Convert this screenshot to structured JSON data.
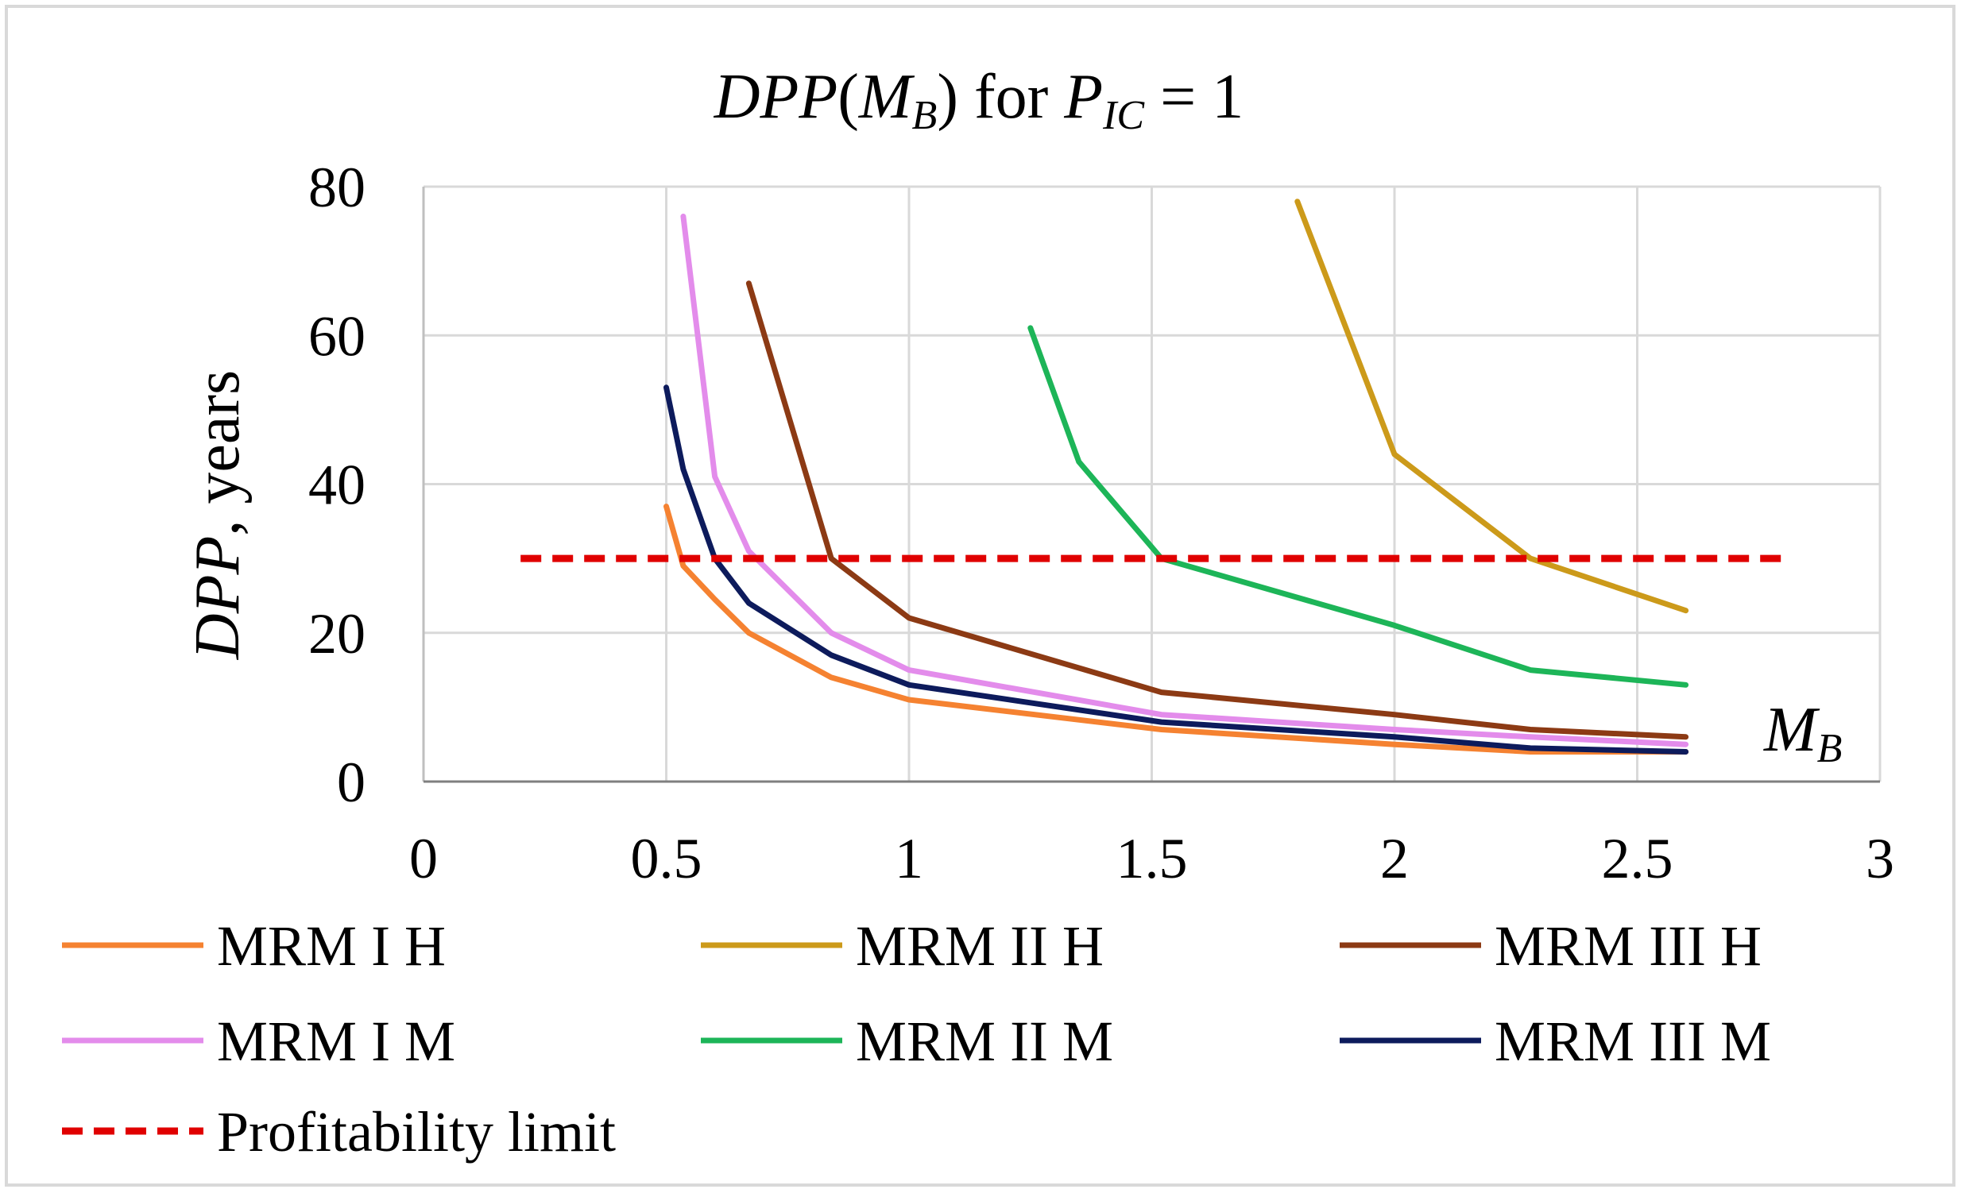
{
  "chart_data": {
    "type": "line",
    "title_parts": {
      "dpp": "DPP",
      "open_paren": "(",
      "m": "M",
      "b_sub": "B",
      "close_paren": ")",
      "for_text": " for ",
      "p": "P",
      "ic_sub": "IC",
      "equals_value": " = 1"
    },
    "y_label_parts": {
      "dpp": "DPP",
      "years": ", years"
    },
    "x_label_parts": {
      "m": "M",
      "b_sub": "B"
    },
    "xlim": [
      0,
      3
    ],
    "ylim": [
      0,
      80
    ],
    "x_ticks": [
      "0",
      "0.5",
      "1",
      "1.5",
      "2",
      "2.5",
      "3"
    ],
    "y_ticks": [
      "0",
      "20",
      "40",
      "60",
      "80"
    ],
    "x_tick_values": [
      0,
      0.5,
      1,
      1.5,
      2,
      2.5,
      3
    ],
    "y_tick_values": [
      0,
      20,
      40,
      60,
      80
    ],
    "grid": true,
    "legend_position": "bottom",
    "series": [
      {
        "name": "MRM I H",
        "color": "#F58231",
        "x": [
          0.5,
          0.535,
          0.6,
          0.67,
          0.84,
          1.0,
          1.52,
          2.0,
          2.28,
          2.6
        ],
        "y": [
          37,
          29,
          24.5,
          20,
          14,
          11,
          7,
          5,
          4,
          4
        ]
      },
      {
        "name": "MRM II H",
        "color": "#CC9A1A",
        "x": [
          1.8,
          2.0,
          2.28,
          2.6
        ],
        "y": [
          78,
          44,
          30,
          23
        ]
      },
      {
        "name": "MRM III H",
        "color": "#8C3A14",
        "x": [
          0.67,
          0.84,
          1.0,
          1.52,
          2.0,
          2.28,
          2.6
        ],
        "y": [
          67,
          30,
          22,
          12,
          9,
          7,
          6
        ]
      },
      {
        "name": "MRM I M",
        "color": "#E38CEB",
        "x": [
          0.535,
          0.6,
          0.67,
          0.84,
          1.0,
          1.52,
          2.0,
          2.28,
          2.6
        ],
        "y": [
          76,
          41,
          31,
          20,
          15,
          9,
          7,
          6,
          5
        ]
      },
      {
        "name": "MRM II M",
        "color": "#1DB558",
        "x": [
          1.25,
          1.35,
          1.52,
          2.0,
          2.28,
          2.6
        ],
        "y": [
          61,
          43,
          30,
          21,
          15,
          13
        ]
      },
      {
        "name": "MRM III M",
        "color": "#0D1B5C",
        "x": [
          0.5,
          0.535,
          0.6,
          0.67,
          0.84,
          1.0,
          1.52,
          2.0,
          2.28,
          2.6
        ],
        "y": [
          53,
          42,
          30,
          24,
          17,
          13,
          8,
          6,
          4.5,
          4
        ]
      },
      {
        "name": "Profitability limit",
        "color": "#E00000",
        "dashed": true,
        "x": [
          0.2,
          2.8
        ],
        "y": [
          30,
          30
        ]
      }
    ]
  }
}
